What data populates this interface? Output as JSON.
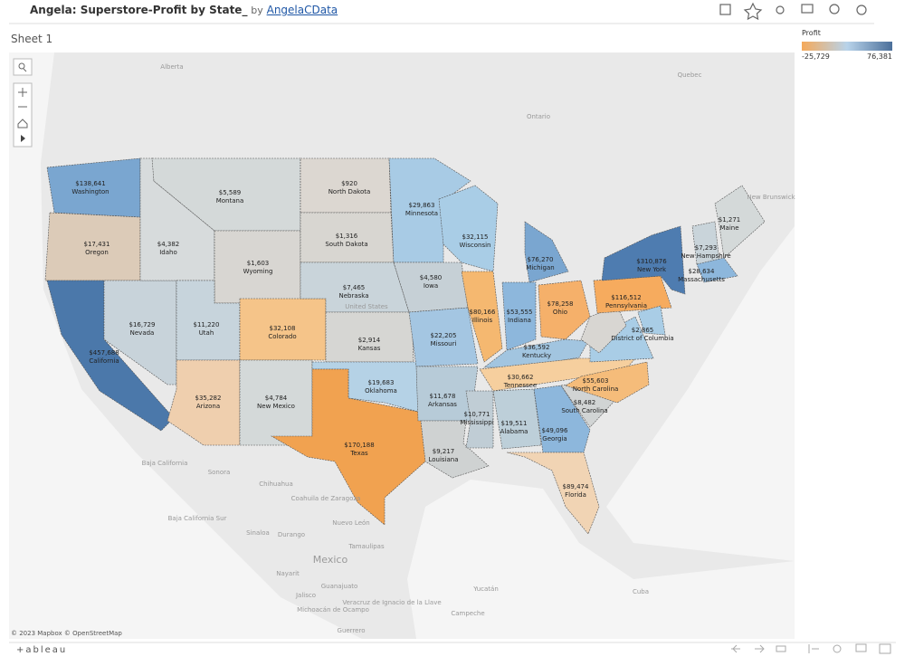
{
  "header": {
    "title": "Angela: Superstore-Profit by State_",
    "by": "by",
    "author": "AngelaCData"
  },
  "sheet": "Sheet 1",
  "legend": {
    "title": "Profit",
    "min": "-25,729",
    "max": "76,381",
    "colors": [
      "#f5a95a",
      "#b8d3ea",
      "#4b6f9a"
    ]
  },
  "states": [
    {
      "name": "Washington",
      "value": "$138,641",
      "color": "#7aa6d0"
    },
    {
      "name": "Oregon",
      "value": "$17,431",
      "color": "#dccbb8"
    },
    {
      "name": "California",
      "value": "$457,688",
      "color": "#4b78aa"
    },
    {
      "name": "Nevada",
      "value": "$16,729",
      "color": "#c8d3da"
    },
    {
      "name": "Idaho",
      "value": "$4,382",
      "color": "#d7dbdc"
    },
    {
      "name": "Montana",
      "value": "$5,589",
      "color": "#d4d9d9"
    },
    {
      "name": "Wyoming",
      "value": "$1,603",
      "color": "#d8d6d2"
    },
    {
      "name": "Utah",
      "value": "$11,220",
      "color": "#c7d4dc"
    },
    {
      "name": "Colorado",
      "value": "$32,108",
      "color": "#f5c489"
    },
    {
      "name": "Arizona",
      "value": "$35,282",
      "color": "#efcfae"
    },
    {
      "name": "New Mexico",
      "value": "$4,784",
      "color": "#d4d9d9"
    },
    {
      "name": "North Dakota",
      "value": "$920",
      "color": "#dcd7d1"
    },
    {
      "name": "South Dakota",
      "value": "$1,316",
      "color": "#d8d6d1"
    },
    {
      "name": "Nebraska",
      "value": "$7,465",
      "color": "#c9d4da"
    },
    {
      "name": "Kansas",
      "value": "$2,914",
      "color": "#d6d6d3"
    },
    {
      "name": "Oklahoma",
      "value": "$19,683",
      "color": "#b5d2e6"
    },
    {
      "name": "Texas",
      "value": "$170,188",
      "color": "#f1a250"
    },
    {
      "name": "Minnesota",
      "value": "$29,863",
      "color": "#a8cbe5"
    },
    {
      "name": "Iowa",
      "value": "$4,580",
      "color": "#c6d0d6"
    },
    {
      "name": "Missouri",
      "value": "$22,205",
      "color": "#a4c6e2"
    },
    {
      "name": "Arkansas",
      "value": "$11,678",
      "color": "#b7cbd8"
    },
    {
      "name": "Louisiana",
      "value": "$9,217",
      "color": "#cfd2d2"
    },
    {
      "name": "Wisconsin",
      "value": "$32,115",
      "color": "#a9cde6"
    },
    {
      "name": "Illinois",
      "value": "$80,166",
      "color": "#f5b870"
    },
    {
      "name": "Michigan",
      "value": "$76,270",
      "color": "#7aa6d0"
    },
    {
      "name": "Indiana",
      "value": "$53,555",
      "color": "#8db7dc"
    },
    {
      "name": "Ohio",
      "value": "$78,258",
      "color": "#f5b06a"
    },
    {
      "name": "Kentucky",
      "value": "$36,592",
      "color": "#a2c5e0"
    },
    {
      "name": "Tennessee",
      "value": "$30,662",
      "color": "#f6cf9e"
    },
    {
      "name": "Mississippi",
      "value": "$10,771",
      "color": "#c0cdd5"
    },
    {
      "name": "Alabama",
      "value": "$19,511",
      "color": "#bdcfd9"
    },
    {
      "name": "Georgia",
      "value": "$49,096",
      "color": "#8db7dc"
    },
    {
      "name": "Florida",
      "value": "$89,474",
      "color": "#f1d4b4"
    },
    {
      "name": "South Carolina",
      "value": "$8,482",
      "color": "#d1d4d4"
    },
    {
      "name": "North Carolina",
      "value": "$55,603",
      "color": "#f5bc7a"
    },
    {
      "name": "Virginia",
      "value": null,
      "color": "#a9cde6"
    },
    {
      "name": "West Virginia",
      "value": null,
      "color": "#d8d6d2"
    },
    {
      "name": "Pennsylvania",
      "value": "$116,512",
      "color": "#f6ab5e"
    },
    {
      "name": "New York",
      "value": "$310,876",
      "color": "#4e7cb0"
    },
    {
      "name": "District of Columbia",
      "value": "$2,865",
      "color": "#a9cde6"
    },
    {
      "name": "New Hampshire",
      "value": "$7,293",
      "color": "#c9d4da"
    },
    {
      "name": "Massachusetts",
      "value": "$28,634",
      "color": "#8db7dc"
    },
    {
      "name": "Maine",
      "value": "$1,271",
      "color": "#d4d9d9"
    }
  ],
  "places": [
    "Alberta",
    "Quebec",
    "Ontario",
    "New Brunswick",
    "United States",
    "Baja California",
    "Sonora",
    "Chihuahua",
    "Coahuila de Zaragoza",
    "Nuevo León",
    "Baja California Sur",
    "Sinaloa",
    "Durango",
    "Tamaulipas",
    "Mexico",
    "Nayarit",
    "Guanajuato",
    "Jalisco",
    "Michoacán de Ocampo",
    "Veracruz de Ignacio de la Llave",
    "Yucatán",
    "Campeche",
    "Cuba",
    "Guerrero"
  ],
  "attribution": "© 2023 Mapbox © OpenStreetMap",
  "footer": {
    "logo": "+ableau"
  }
}
